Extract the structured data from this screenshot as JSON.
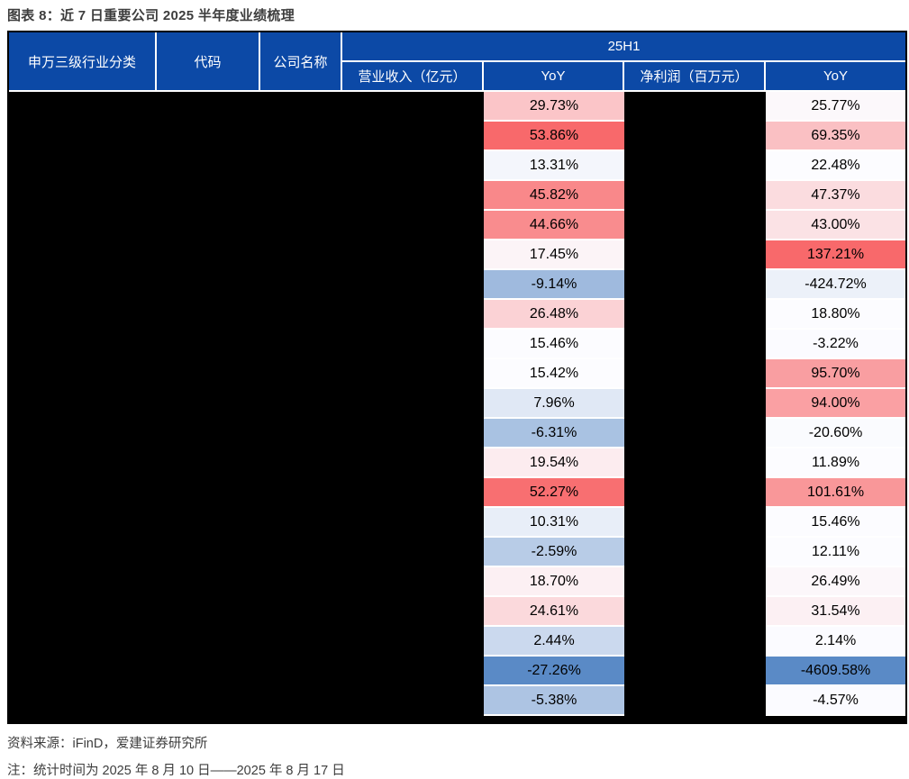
{
  "title": "图表 8：近 7 日重要公司 2025 半年度业绩梳理",
  "chart_data": {
    "type": "table",
    "title": "图表 8：近 7 日重要公司 2025 半年度业绩梳理",
    "group_header": "25H1",
    "columns": [
      "申万三级行业分类",
      "代码",
      "公司名称",
      "营业收入（亿元）",
      "YoY",
      "净利润（百万元）",
      "YoY"
    ],
    "redacted_columns": [
      "申万三级行业分类",
      "代码",
      "公司名称",
      "营业收入（亿元）",
      "净利润（百万元）"
    ],
    "rows": [
      {
        "revenue_yoy": 29.73,
        "profit_yoy": 25.77
      },
      {
        "revenue_yoy": 53.86,
        "profit_yoy": 69.35
      },
      {
        "revenue_yoy": 13.31,
        "profit_yoy": 22.48
      },
      {
        "revenue_yoy": 45.82,
        "profit_yoy": 47.37
      },
      {
        "revenue_yoy": 44.66,
        "profit_yoy": 43.0
      },
      {
        "revenue_yoy": 17.45,
        "profit_yoy": 137.21
      },
      {
        "revenue_yoy": -9.14,
        "profit_yoy": -424.72
      },
      {
        "revenue_yoy": 26.48,
        "profit_yoy": 18.8
      },
      {
        "revenue_yoy": 15.46,
        "profit_yoy": -3.22
      },
      {
        "revenue_yoy": 15.42,
        "profit_yoy": 95.7
      },
      {
        "revenue_yoy": 7.96,
        "profit_yoy": 94.0
      },
      {
        "revenue_yoy": -6.31,
        "profit_yoy": -20.6
      },
      {
        "revenue_yoy": 19.54,
        "profit_yoy": 11.89
      },
      {
        "revenue_yoy": 52.27,
        "profit_yoy": 101.61
      },
      {
        "revenue_yoy": 10.31,
        "profit_yoy": 15.46
      },
      {
        "revenue_yoy": -2.59,
        "profit_yoy": 12.11
      },
      {
        "revenue_yoy": 18.7,
        "profit_yoy": 26.49
      },
      {
        "revenue_yoy": 24.61,
        "profit_yoy": 31.54
      },
      {
        "revenue_yoy": 2.44,
        "profit_yoy": 2.14
      },
      {
        "revenue_yoy": -27.26,
        "profit_yoy": -4609.58
      },
      {
        "revenue_yoy": -5.38,
        "profit_yoy": -4.57
      }
    ],
    "heatmap": "3-color scale per YoY column: min=blue, median=white, max=red"
  },
  "footer": {
    "source": "资料来源：iFinD，爱建证券研究所",
    "note": "注：统计时间为 2025 年 8 月 10 日——2025 年 8 月 17 日"
  },
  "colors": {
    "header_bg": "#0c49a6",
    "header_text": "#ffffff",
    "cell_text": "#000000",
    "redacted_bg": "#000000",
    "grid": "#ffffff",
    "table_border": "#000000",
    "title_text": "#3d3d3d",
    "footer_text": "#3d3d3d",
    "scale_max": "#f8696b",
    "scale_mid": "#fcfcff",
    "scale_min": "#5a8ac6"
  }
}
